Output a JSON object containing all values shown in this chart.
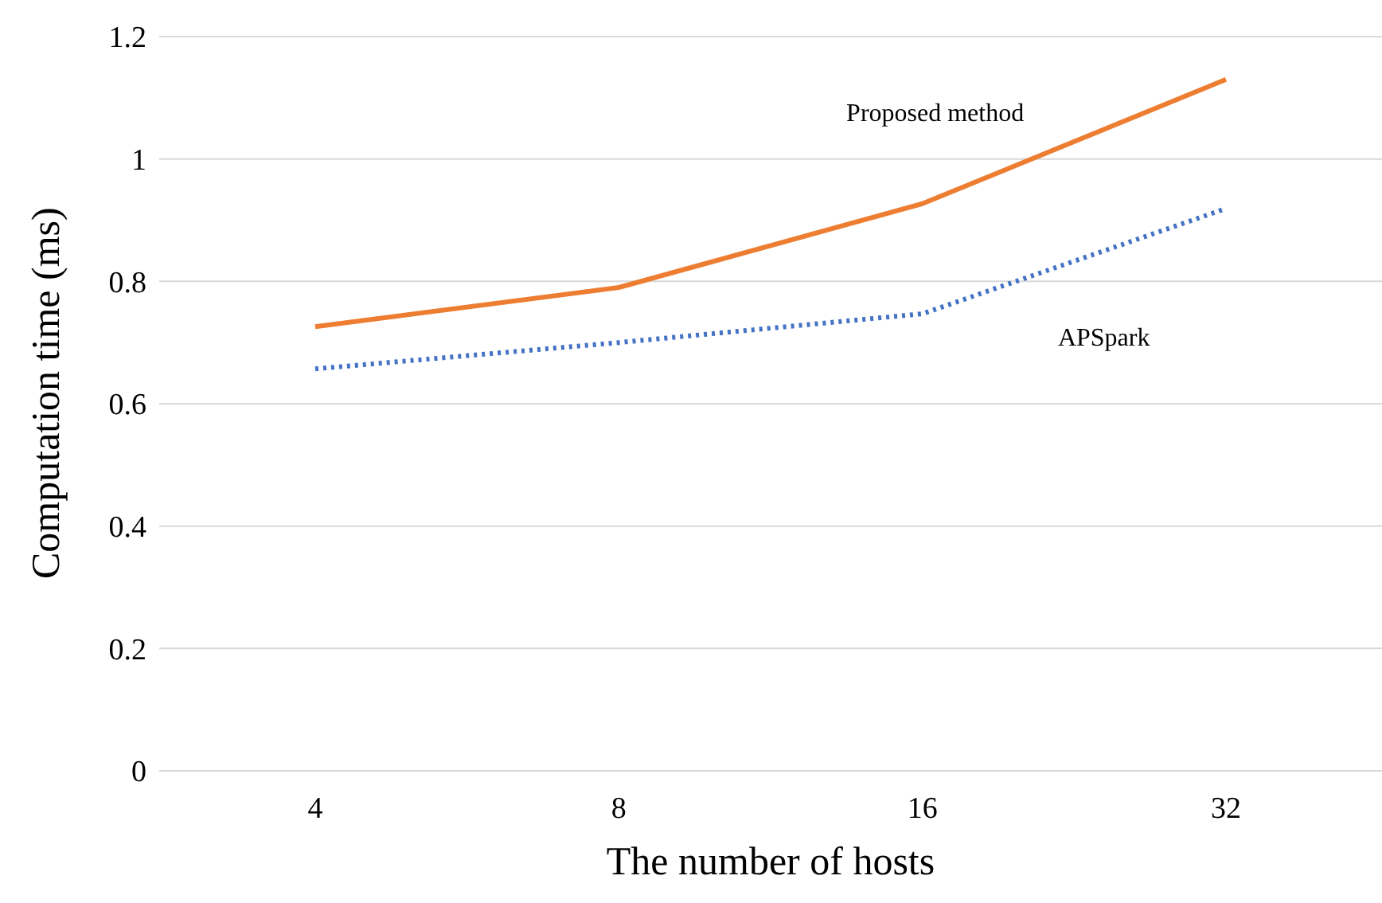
{
  "chart_data": {
    "type": "line",
    "xlabel": "The number of hosts",
    "ylabel": "Computation time (ms)",
    "categories": [
      "4",
      "8",
      "16",
      "32"
    ],
    "series": [
      {
        "name": "Proposed method",
        "color": "#ed7d31",
        "line_style": "solid",
        "values": [
          0.726,
          0.79,
          0.927,
          1.13
        ]
      },
      {
        "name": "APSpark",
        "color": "#4472c4",
        "line_style": "dotted",
        "values": [
          0.657,
          0.7,
          0.747,
          0.919
        ]
      }
    ],
    "ylim": [
      0,
      1.2
    ],
    "yticks": [
      0,
      0.2,
      0.4,
      0.6,
      0.8,
      1,
      1.2
    ],
    "grid": "y",
    "legend": false,
    "marker": "none"
  }
}
